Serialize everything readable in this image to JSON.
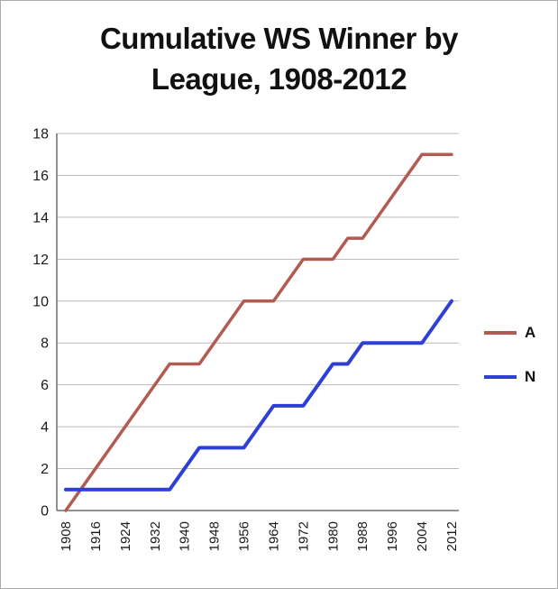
{
  "window": {
    "background": "#FFFFFF",
    "border_color": "#ABABAB"
  },
  "chart_data": {
    "type": "line",
    "title": "Cumulative WS Winner by League, 1908-2012",
    "title_lines": [
      "Cumulative WS Winner by",
      "League, 1908-2012"
    ],
    "xlabel": "",
    "ylabel": "",
    "xlim": [
      1908,
      2012
    ],
    "ylim": [
      0,
      18
    ],
    "grid": true,
    "legend_position": "right",
    "x_ticks": [
      1908,
      1916,
      1924,
      1932,
      1940,
      1948,
      1956,
      1964,
      1972,
      1980,
      1988,
      1996,
      2004,
      2012
    ],
    "y_ticks": [
      0,
      2,
      4,
      6,
      8,
      10,
      12,
      14,
      16,
      18
    ],
    "x": [
      1908,
      1912,
      1916,
      1920,
      1924,
      1928,
      1932,
      1936,
      1940,
      1944,
      1948,
      1952,
      1956,
      1960,
      1964,
      1968,
      1972,
      1976,
      1980,
      1984,
      1988,
      1992,
      1996,
      2000,
      2004,
      2008,
      2012
    ],
    "series": [
      {
        "name": "A",
        "color": "#B25B52",
        "values": [
          0,
          1,
          2,
          3,
          4,
          5,
          6,
          7,
          7,
          7,
          8,
          9,
          10,
          10,
          10,
          11,
          12,
          12,
          12,
          13,
          13,
          14,
          15,
          16,
          17,
          17,
          17
        ]
      },
      {
        "name": "N",
        "color": "#2E3FD6",
        "values": [
          1,
          1,
          1,
          1,
          1,
          1,
          1,
          1,
          2,
          3,
          3,
          3,
          3,
          4,
          5,
          5,
          5,
          6,
          7,
          7,
          8,
          8,
          8,
          8,
          8,
          9,
          10
        ]
      }
    ],
    "colors": {
      "grid": "#B8B8B8",
      "axis": "#6F6F6F",
      "tick_text": "#1A1A1A",
      "title_text": "#111111"
    }
  }
}
